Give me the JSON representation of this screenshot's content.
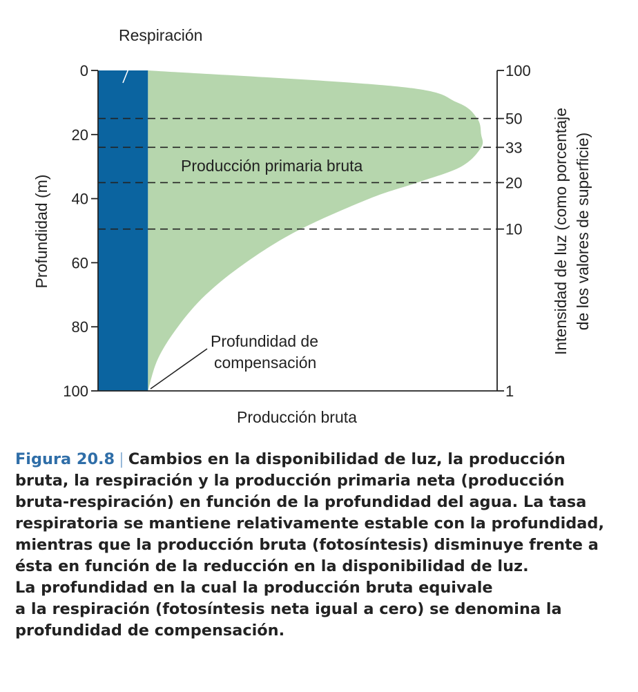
{
  "chart_data": {
    "type": "area",
    "title": "",
    "xlabel": "Producción bruta",
    "ylabel": "Profundidad (m)",
    "y2label_line1": "Intensidad de luz (como porcentaje",
    "y2label_line2": "de los valores de superficie)",
    "ylim": [
      0,
      100
    ],
    "y_inverted": true,
    "y_ticks": [
      0,
      20,
      40,
      60,
      80,
      100
    ],
    "y2_ticks": [
      {
        "label": "100",
        "depth": 0
      },
      {
        "label": "50",
        "depth": 15
      },
      {
        "label": "33",
        "depth": 24
      },
      {
        "label": "20",
        "depth": 35
      },
      {
        "label": "10",
        "depth": 49.5
      },
      {
        "label": "1",
        "depth": 100
      }
    ],
    "dashed_depths": [
      15,
      24,
      35,
      49.5
    ],
    "xlim": [
      0,
      100
    ],
    "series": [
      {
        "name": "Respiración",
        "color": "#0b64a0",
        "depth": [
          0,
          100
        ],
        "values": [
          12.5,
          12.5
        ]
      },
      {
        "name": "Producción primaria bruta",
        "color": "#b6d6ad",
        "depth": [
          0,
          5,
          10,
          15,
          20,
          24,
          30,
          35,
          40,
          50,
          60,
          70,
          80,
          90,
          100
        ],
        "values": [
          12.5,
          75,
          90,
          95,
          96,
          96,
          91,
          80,
          68,
          50,
          37,
          27,
          20,
          15,
          12.5
        ]
      }
    ],
    "annotations": {
      "respiracion": "Respiración",
      "gpp": "Producción primaria bruta",
      "compensation_line1": "Profundidad de",
      "compensation_line2": "compensación"
    }
  },
  "caption": {
    "label": "Figura 20.8",
    "separator": "|",
    "lines": [
      "Cambios en la disponibilidad de luz, la producción",
      "bruta, la respiración y la producción primaria neta (producción",
      "bruta-respiración) en función de la profundidad del agua. La tasa",
      "respiratoria se mantiene relativamente estable con la profundidad,",
      "mientras que la producción bruta (fotosíntesis) disminuye frente a",
      "ésta en función de la reducción en la disponibilidad de luz.",
      "La profundidad en la cual la producción bruta equivale",
      "a la respiración (fotosíntesis neta igual a cero) se denomina la",
      "profundidad de compensación."
    ]
  }
}
